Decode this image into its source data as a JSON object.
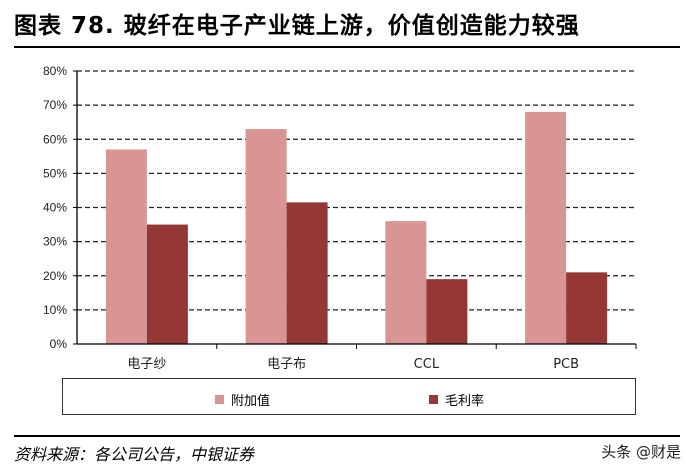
{
  "title": "图表 78. 玻纤在电子产业链上游，价值创造能力较强",
  "source": "资料来源：各公司公告，中银证券",
  "watermark": "头条 @财是",
  "chart_data": {
    "type": "bar",
    "categories": [
      "电子纱",
      "电子布",
      "CCL",
      "PCB"
    ],
    "series": [
      {
        "name": "附加值",
        "values": [
          57,
          63,
          36,
          68
        ],
        "color": "#d99594"
      },
      {
        "name": "毛利率",
        "values": [
          35,
          41.5,
          19,
          21
        ],
        "color": "#953735"
      }
    ],
    "ylim": [
      0,
      80
    ],
    "yticks": [
      "0%",
      "10%",
      "20%",
      "30%",
      "40%",
      "50%",
      "60%",
      "70%",
      "80%"
    ],
    "grid": true,
    "legend": "bottom"
  }
}
